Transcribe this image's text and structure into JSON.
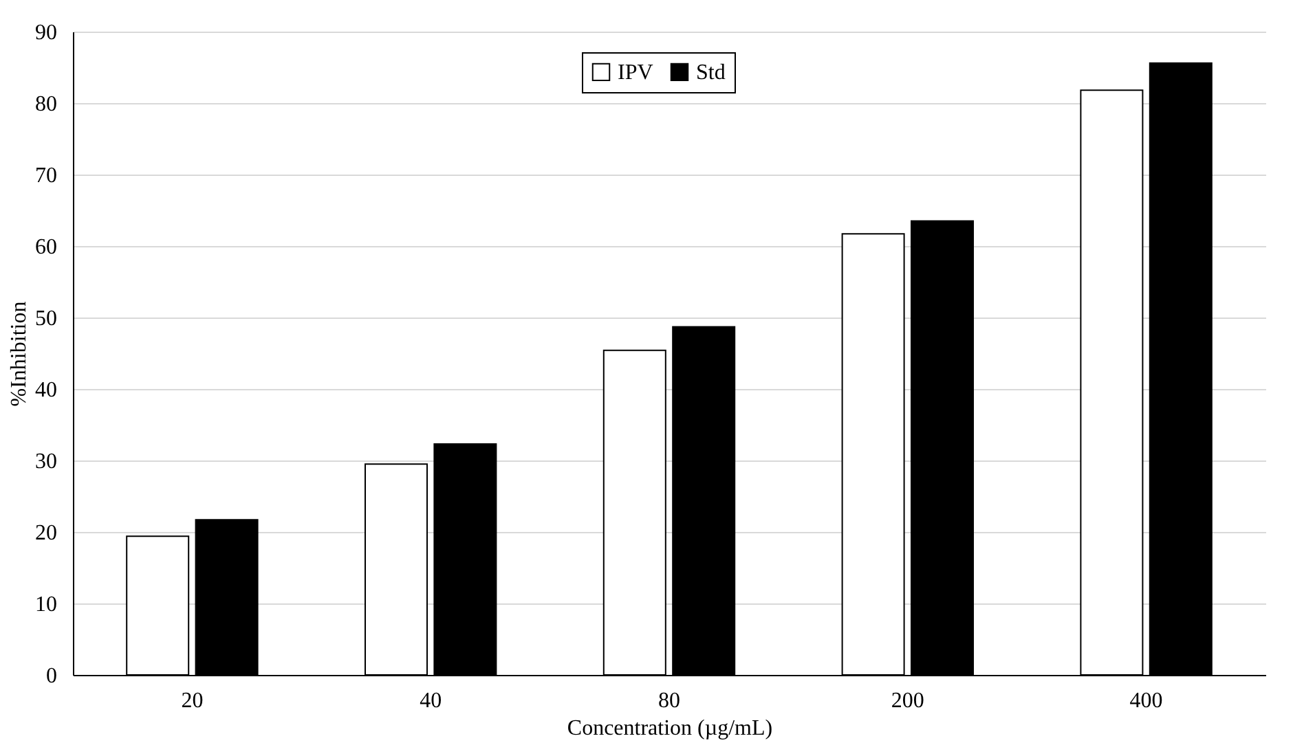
{
  "chart_data": {
    "type": "bar",
    "xlabel": "Concentration (µg/mL)",
    "ylabel": "%Inhibition",
    "categories": [
      "20",
      "40",
      "80",
      "200",
      "400"
    ],
    "series": [
      {
        "name": "IPV",
        "color": "#ffffff",
        "values": [
          19.4,
          29.5,
          45.4,
          61.7,
          81.8
        ]
      },
      {
        "name": "Std",
        "color": "#000000",
        "values": [
          21.7,
          32.3,
          48.7,
          63.5,
          85.6
        ]
      }
    ],
    "ylim": [
      0,
      90
    ],
    "yticks": [
      0,
      10,
      20,
      30,
      40,
      50,
      60,
      70,
      80,
      90
    ],
    "grid": "y",
    "legend": "top"
  }
}
